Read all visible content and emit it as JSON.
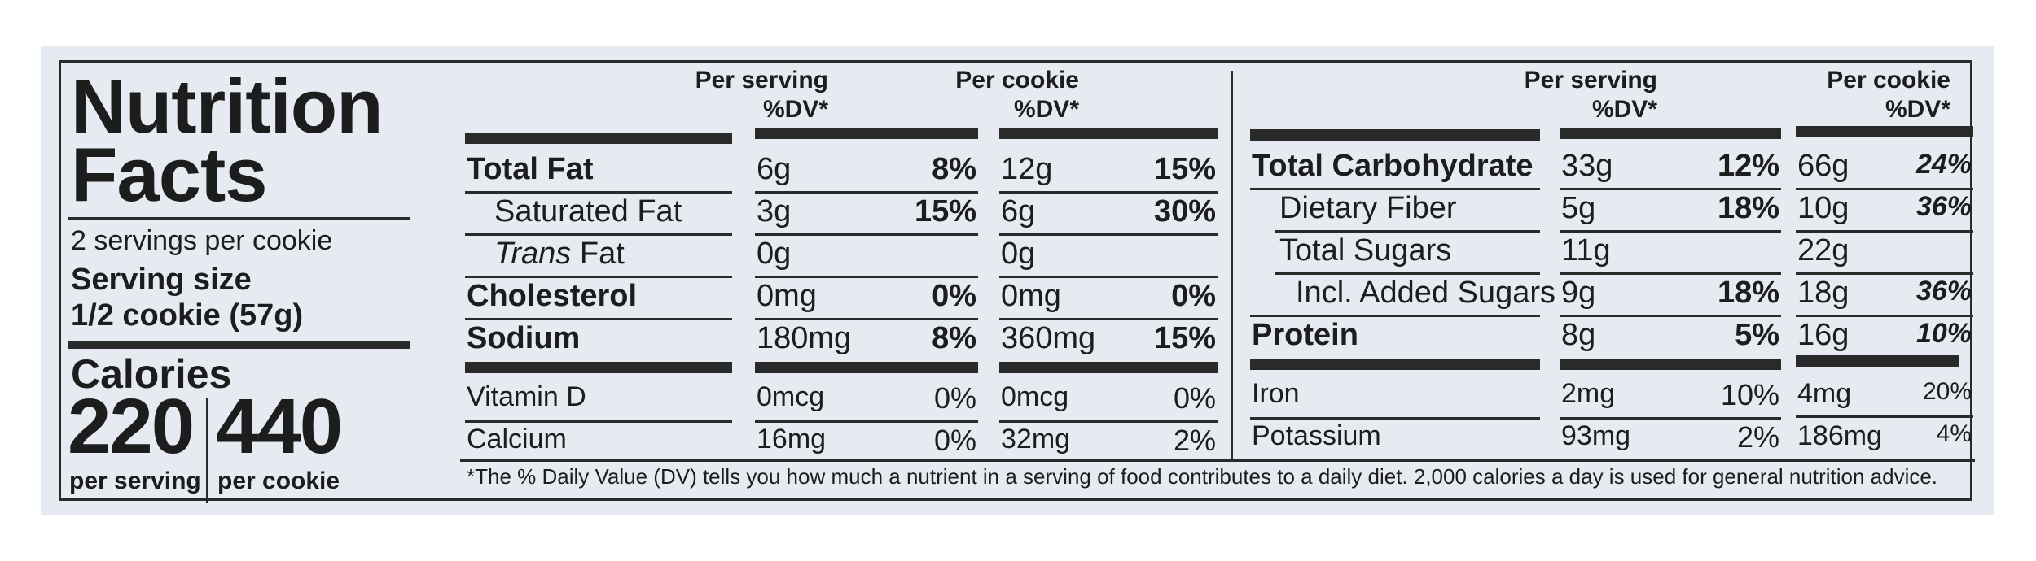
{
  "title_line1": "Nutrition",
  "title_line2": "Facts",
  "servings_per_container": "2 servings per cookie",
  "serving_size_label": "Serving size",
  "serving_size_value": "1/2 cookie (57g)",
  "calories": {
    "label": "Calories",
    "per_serving_value": "220",
    "per_serving_label": "per serving",
    "per_cookie_value": "440",
    "per_cookie_label": "per cookie"
  },
  "headers": {
    "per_serving": "Per serving",
    "per_cookie": "Per cookie",
    "dv": "%DV*"
  },
  "left_rows": [
    {
      "name": "Total Fat",
      "serving_amt": "6g",
      "serving_dv": "8%",
      "cookie_amt": "12g",
      "cookie_dv": "15%"
    },
    {
      "name": "Saturated Fat",
      "serving_amt": "3g",
      "serving_dv": "15%",
      "cookie_amt": "6g",
      "cookie_dv": "30%"
    },
    {
      "name_italic": "Trans",
      "name_rest": " Fat",
      "serving_amt": "0g",
      "serving_dv": "",
      "cookie_amt": "0g",
      "cookie_dv": ""
    },
    {
      "name": "Cholesterol",
      "serving_amt": "0mg",
      "serving_dv": "0%",
      "cookie_amt": "0mg",
      "cookie_dv": "0%"
    },
    {
      "name": "Sodium",
      "serving_amt": "180mg",
      "serving_dv": "8%",
      "cookie_amt": "360mg",
      "cookie_dv": "15%"
    }
  ],
  "left_vitamins": [
    {
      "name": "Vitamin D",
      "serving_amt": "0mcg",
      "serving_dv": "0%",
      "cookie_amt": "0mcg",
      "cookie_dv": "0%"
    },
    {
      "name": "Calcium",
      "serving_amt": "16mg",
      "serving_dv": "0%",
      "cookie_amt": "32mg",
      "cookie_dv": "2%"
    }
  ],
  "right_rows": [
    {
      "name": "Total Carbohydrate",
      "serving_amt": "33g",
      "serving_dv": "12%",
      "cookie_amt": "66g",
      "cookie_dv": "24%"
    },
    {
      "name": "Dietary Fiber",
      "serving_amt": "5g",
      "serving_dv": "18%",
      "cookie_amt": "10g",
      "cookie_dv": "36%"
    },
    {
      "name": "Total Sugars",
      "serving_amt": "11g",
      "serving_dv": "",
      "cookie_amt": "22g",
      "cookie_dv": ""
    },
    {
      "name": "Incl. Added Sugars",
      "serving_amt": "9g",
      "serving_dv": "18%",
      "cookie_amt": "18g",
      "cookie_dv": "36%"
    },
    {
      "name": "Protein",
      "serving_amt": "8g",
      "serving_dv": "5%",
      "cookie_amt": "16g",
      "cookie_dv": "10%"
    }
  ],
  "right_vitamins": [
    {
      "name": "Iron",
      "serving_amt": "2mg",
      "serving_dv": "10%",
      "cookie_amt": "4mg",
      "cookie_dv": "20%"
    },
    {
      "name": "Potassium",
      "serving_amt": "93mg",
      "serving_dv": "2%",
      "cookie_amt": "186mg",
      "cookie_dv": "4%"
    }
  ],
  "footnote": "*The % Daily Value (DV) tells you how much a nutrient in a serving of food contributes to a daily diet. 2,000 calories a day is used for general nutrition advice."
}
